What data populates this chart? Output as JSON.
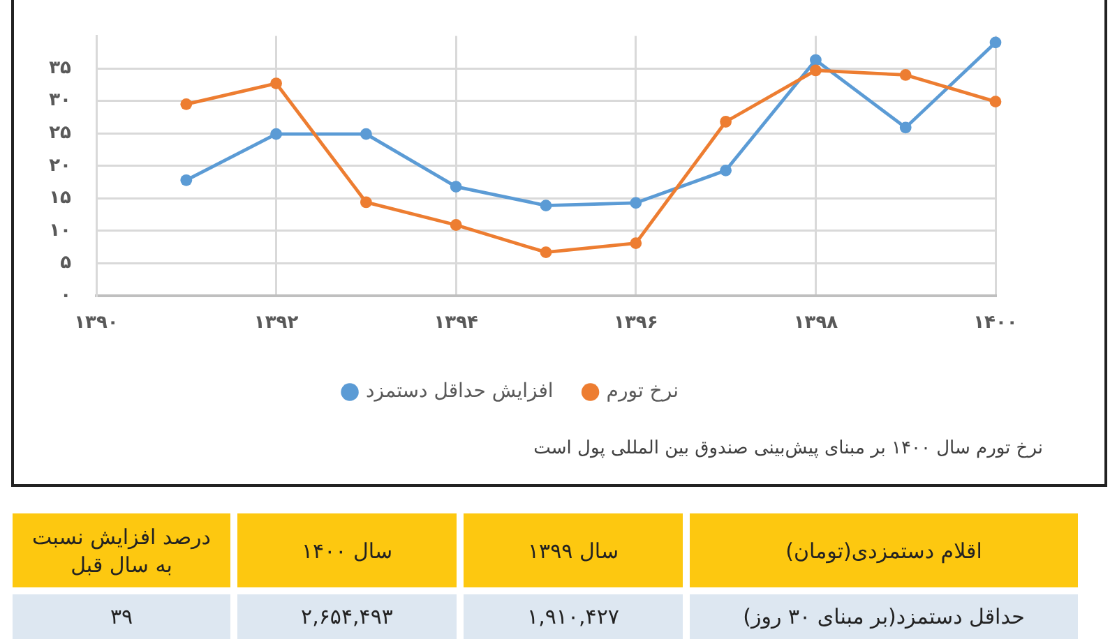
{
  "chart_data": [
    {
      "type": "line",
      "x": [
        1391,
        1392,
        1393,
        1394,
        1395,
        1396,
        1397,
        1398,
        1399,
        1400
      ],
      "series": [
        {
          "name": "افزایش حداقل دستمزد",
          "color": "#5b9bd5",
          "values": [
            17.8,
            24.9,
            24.9,
            16.8,
            13.9,
            14.3,
            19.3,
            36.3,
            25.9,
            39
          ]
        },
        {
          "name": "نرخ تورم",
          "color": "#ed7d31",
          "values": [
            29.5,
            32.7,
            14.4,
            10.9,
            6.7,
            8.1,
            26.8,
            34.7,
            34.0,
            29.9
          ]
        }
      ],
      "xlim": [
        1390,
        1400
      ],
      "xticks": [
        {
          "value": 1390,
          "label": "۱۳۹۰"
        },
        {
          "value": 1392,
          "label": "۱۳۹۲"
        },
        {
          "value": 1394,
          "label": "۱۳۹۴"
        },
        {
          "value": 1396,
          "label": "۱۳۹۶"
        },
        {
          "value": 1398,
          "label": "۱۳۹۸"
        },
        {
          "value": 1400,
          "label": "۱۴۰۰"
        }
      ],
      "ylim": [
        0,
        40
      ],
      "yticks": [
        {
          "value": 0,
          "label": "۰"
        },
        {
          "value": 5,
          "label": "۵"
        },
        {
          "value": 10,
          "label": "۱۰"
        },
        {
          "value": 15,
          "label": "۱۵"
        },
        {
          "value": 20,
          "label": "۲۰"
        },
        {
          "value": 25,
          "label": "۲۵"
        },
        {
          "value": 30,
          "label": "۳۰"
        },
        {
          "value": 35,
          "label": "۳۵"
        }
      ],
      "grid": true,
      "legend": "bottom",
      "marker": "circle",
      "annotations": [
        "نرخ تورم سال ۱۴۰۰ بر مبنای پیش‌بینی صندوق بین المللی پول است"
      ]
    },
    {
      "type": "other",
      "annotations": [
        "اقلام دستمزدی(تومان)",
        "سال ۱۳۹۹",
        "سال ۱۴۰۰",
        "درصد افزایش نسبت به سال قبل",
        "حداقل دستمزد(بر مبنای ۳۰ روز)",
        "۱,۹۱۰,۴۲۷",
        "۲,۶۵۴,۴۹۳",
        "۳۹"
      ]
    }
  ]
}
